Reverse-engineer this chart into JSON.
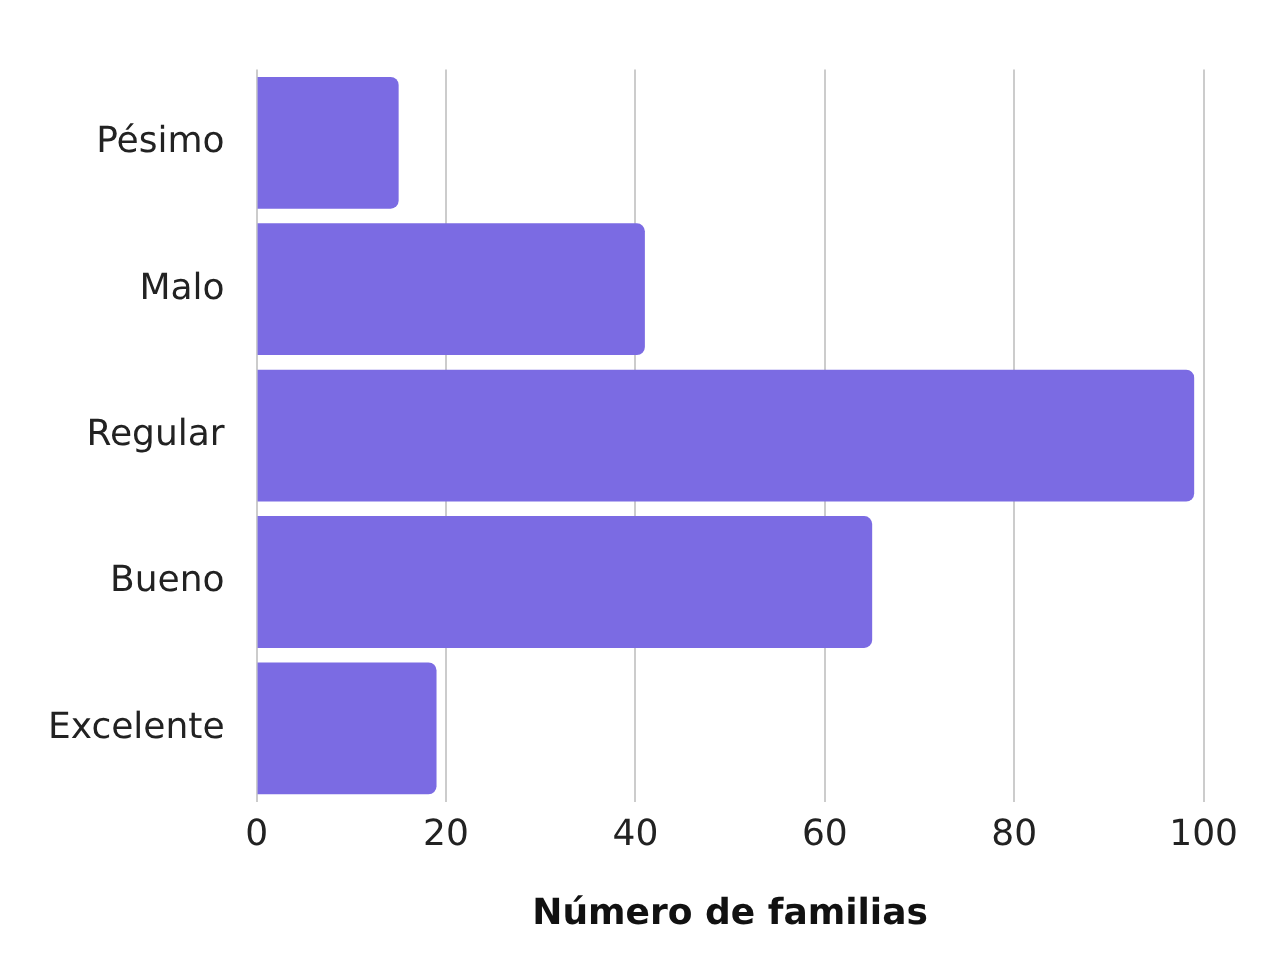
{
  "chart_data": {
    "type": "bar",
    "orientation": "horizontal",
    "xlabel": "Número de familias",
    "categories": [
      "Pésimo",
      "Malo",
      "Regular",
      "Bueno",
      "Excelente"
    ],
    "values": [
      15,
      41,
      99,
      65,
      19
    ],
    "color": "#7b6be3",
    "xlim": [
      0,
      100
    ],
    "xticks": [
      0,
      20,
      40,
      60,
      80,
      100
    ],
    "grid": "x",
    "legend": false
  }
}
